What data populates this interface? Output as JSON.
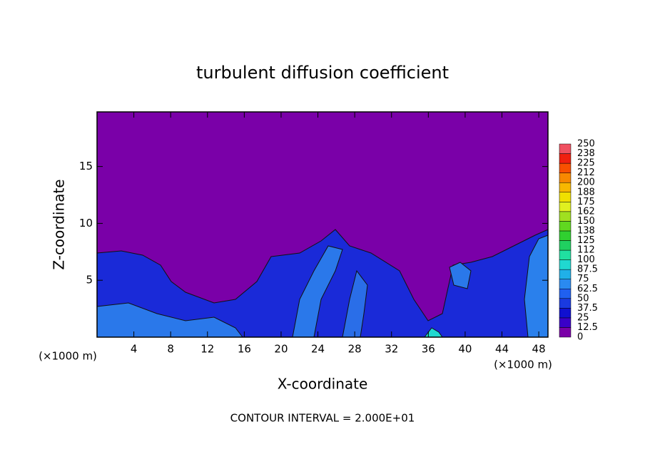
{
  "chart_data": {
    "type": "contour",
    "title": "turbulent diffusion coefficient",
    "x_label": "X-coordinate",
    "y_label": "Z-coordinate",
    "x_unit_left": "(×1000 m)",
    "x_unit_right": "(×1000 m)",
    "note": "CONTOUR INTERVAL = 2.000E+01",
    "xlim": [
      0,
      49
    ],
    "ylim": [
      0,
      19.8
    ],
    "xticks": [
      4,
      8,
      12,
      16,
      20,
      24,
      28,
      32,
      36,
      40,
      44,
      48
    ],
    "yticks": [
      5,
      10,
      15
    ],
    "colorbar": {
      "levels": [
        0,
        12.5,
        25,
        37.5,
        50,
        62.5,
        75,
        87.5,
        100,
        112,
        125,
        138,
        150,
        162,
        175,
        188,
        200,
        212,
        225,
        238,
        250
      ],
      "colors": [
        "#7a00a8",
        "#3a00c8",
        "#1010d0",
        "#1a3ae0",
        "#2060f0",
        "#2a8af0",
        "#20b0e8",
        "#20d8d0",
        "#20e0a0",
        "#20d060",
        "#30d030",
        "#60d820",
        "#a0e020",
        "#e0f020",
        "#f0e000",
        "#f8b800",
        "#f88800",
        "#f85000",
        "#f02010",
        "#f05060"
      ]
    }
  }
}
